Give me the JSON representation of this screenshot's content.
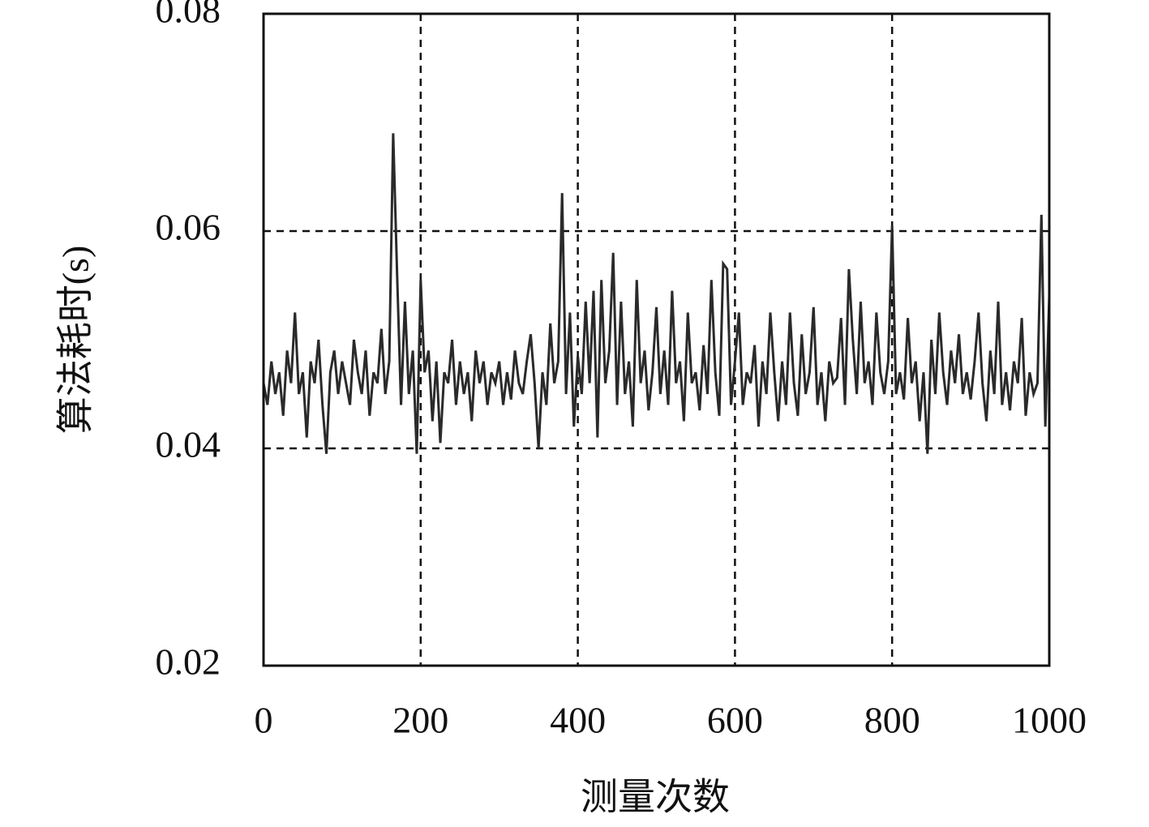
{
  "chart_data": {
    "type": "line",
    "xlabel": "测量次数",
    "ylabel": "算法耗时(s)",
    "xlim": [
      0,
      1000
    ],
    "xticks": [
      0,
      200,
      400,
      600,
      800,
      1000
    ],
    "ylim": [
      0.02,
      0.08
    ],
    "yticks": [
      0.02,
      0.04,
      0.06,
      0.08
    ],
    "grid": true,
    "color": "#2a2a2a",
    "x": [
      0,
      5,
      10,
      15,
      20,
      25,
      30,
      35,
      40,
      45,
      50,
      55,
      60,
      65,
      70,
      75,
      80,
      85,
      90,
      95,
      100,
      105,
      110,
      115,
      120,
      125,
      130,
      135,
      140,
      145,
      150,
      155,
      160,
      165,
      170,
      175,
      180,
      185,
      190,
      195,
      200,
      205,
      210,
      215,
      220,
      225,
      230,
      235,
      240,
      245,
      250,
      255,
      260,
      265,
      270,
      275,
      280,
      285,
      290,
      295,
      300,
      305,
      310,
      315,
      320,
      325,
      330,
      335,
      340,
      345,
      350,
      355,
      360,
      365,
      370,
      375,
      380,
      385,
      390,
      395,
      400,
      405,
      410,
      415,
      420,
      425,
      430,
      435,
      440,
      445,
      450,
      455,
      460,
      465,
      470,
      475,
      480,
      485,
      490,
      495,
      500,
      505,
      510,
      515,
      520,
      525,
      530,
      535,
      540,
      545,
      550,
      555,
      560,
      565,
      570,
      575,
      580,
      585,
      590,
      595,
      600,
      605,
      610,
      615,
      620,
      625,
      630,
      635,
      640,
      645,
      650,
      655,
      660,
      665,
      670,
      675,
      680,
      685,
      690,
      695,
      700,
      705,
      710,
      715,
      720,
      725,
      730,
      735,
      740,
      745,
      750,
      755,
      760,
      765,
      770,
      775,
      780,
      785,
      790,
      795,
      800,
      805,
      810,
      815,
      820,
      825,
      830,
      835,
      840,
      845,
      850,
      855,
      860,
      865,
      870,
      875,
      880,
      885,
      890,
      895,
      900,
      905,
      910,
      915,
      920,
      925,
      930,
      935,
      940,
      945,
      950,
      955,
      960,
      965,
      970,
      975,
      980,
      985,
      990,
      995,
      1000
    ],
    "values": [
      0.046,
      0.044,
      0.048,
      0.045,
      0.047,
      0.043,
      0.049,
      0.046,
      0.0525,
      0.045,
      0.047,
      0.041,
      0.048,
      0.046,
      0.05,
      0.044,
      0.0395,
      0.047,
      0.049,
      0.045,
      0.048,
      0.046,
      0.044,
      0.05,
      0.047,
      0.045,
      0.049,
      0.043,
      0.047,
      0.046,
      0.051,
      0.045,
      0.048,
      0.069,
      0.056,
      0.044,
      0.0535,
      0.045,
      0.049,
      0.0395,
      0.0555,
      0.047,
      0.049,
      0.0425,
      0.048,
      0.0405,
      0.047,
      0.046,
      0.05,
      0.044,
      0.048,
      0.045,
      0.047,
      0.0425,
      0.049,
      0.046,
      0.048,
      0.044,
      0.047,
      0.046,
      0.048,
      0.044,
      0.047,
      0.0445,
      0.049,
      0.046,
      0.045,
      0.048,
      0.0505,
      0.046,
      0.04,
      0.047,
      0.044,
      0.0515,
      0.046,
      0.048,
      0.0635,
      0.045,
      0.0525,
      0.042,
      0.0485,
      0.045,
      0.0535,
      0.046,
      0.0545,
      0.041,
      0.0555,
      0.046,
      0.049,
      0.058,
      0.044,
      0.0535,
      0.045,
      0.048,
      0.042,
      0.0555,
      0.046,
      0.049,
      0.0435,
      0.047,
      0.053,
      0.045,
      0.049,
      0.044,
      0.0545,
      0.046,
      0.048,
      0.0425,
      0.0525,
      0.046,
      0.047,
      0.0435,
      0.0495,
      0.045,
      0.0555,
      0.047,
      0.043,
      0.057,
      0.0565,
      0.044,
      0.048,
      0.0525,
      0.044,
      0.047,
      0.046,
      0.0495,
      0.042,
      0.048,
      0.045,
      0.0525,
      0.047,
      0.0425,
      0.048,
      0.044,
      0.0525,
      0.046,
      0.043,
      0.0505,
      0.045,
      0.047,
      0.053,
      0.044,
      0.047,
      0.0425,
      0.048,
      0.046,
      0.0465,
      0.052,
      0.044,
      0.0565,
      0.05,
      0.045,
      0.0535,
      0.046,
      0.048,
      0.044,
      0.0525,
      0.047,
      0.045,
      0.048,
      0.0605,
      0.045,
      0.047,
      0.0445,
      0.052,
      0.046,
      0.048,
      0.0425,
      0.047,
      0.0395,
      0.05,
      0.045,
      0.0525,
      0.047,
      0.044,
      0.049,
      0.046,
      0.0505,
      0.045,
      0.047,
      0.0445,
      0.048,
      0.0525,
      0.046,
      0.0425,
      0.049,
      0.045,
      0.0535,
      0.044,
      0.047,
      0.0435,
      0.048,
      0.046,
      0.052,
      0.043,
      0.047,
      0.045,
      0.046,
      0.0615,
      0.042,
      0.054
    ]
  }
}
